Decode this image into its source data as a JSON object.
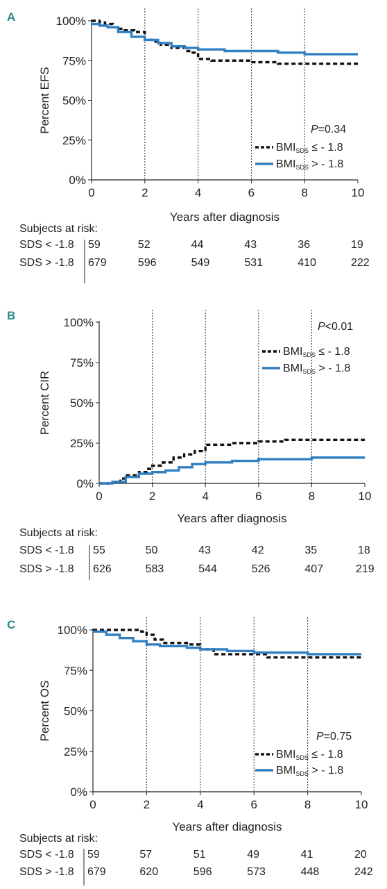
{
  "chart_data": [
    {
      "panel": "A",
      "type": "line",
      "ylabel": "Percent EFS",
      "xlabel": "Years after diagnosis",
      "xlim": [
        0,
        10
      ],
      "ylim": [
        0,
        100
      ],
      "xticks": [
        "0",
        "2",
        "4",
        "6",
        "8",
        "10"
      ],
      "yticks": [
        "0%",
        "25%",
        "50%",
        "75%",
        "100%"
      ],
      "vlines": [
        2,
        4,
        6,
        8
      ],
      "pvalue_prefix": "P",
      "pvalue": "=0.34",
      "legend": [
        {
          "pre": "BMI",
          "sub": "SDS",
          "post": " ≤ - 1.8",
          "style": "dashed",
          "color": "#111111"
        },
        {
          "pre": "BMI",
          "sub": "SDS",
          "post": " > - 1.8",
          "style": "solid",
          "color": "#2f7fc1"
        }
      ],
      "series": [
        {
          "style": "dashed",
          "color": "#111111",
          "x": [
            0,
            0.3,
            0.5,
            0.8,
            1.0,
            1.2,
            1.6,
            2.0,
            2.4,
            2.6,
            3.0,
            3.6,
            3.8,
            4.0,
            4.5,
            5.0,
            6.0,
            6.5,
            7.0,
            8.0,
            9.0,
            10.0
          ],
          "y": [
            100,
            99,
            98,
            96,
            95,
            94,
            93,
            88,
            87,
            85,
            83,
            81,
            80,
            76,
            75,
            75,
            74,
            74,
            73,
            73,
            73,
            73
          ]
        },
        {
          "style": "solid",
          "color": "#2f7fc1",
          "x": [
            0,
            0.3,
            0.6,
            1.0,
            1.5,
            2.0,
            2.5,
            3.0,
            3.5,
            4.0,
            4.5,
            5.0,
            6.0,
            7.0,
            7.5,
            8.0,
            9.0,
            10.0
          ],
          "y": [
            98,
            97,
            96,
            93,
            90,
            88,
            86,
            84,
            83,
            82,
            82,
            81,
            81,
            80,
            80,
            79,
            79,
            79
          ]
        }
      ],
      "risk_title": "Subjects at risk:",
      "risk_rows": [
        {
          "label": "SDS < -1.8",
          "values": [
            "59",
            "52",
            "44",
            "43",
            "36",
            "19"
          ]
        },
        {
          "label": "SDS > -1.8",
          "values": [
            "679",
            "596",
            "549",
            "531",
            "410",
            "222"
          ]
        }
      ]
    },
    {
      "panel": "B",
      "type": "line",
      "ylabel": "Percent CIR",
      "xlabel": "Years after diagnosis",
      "xlim": [
        0,
        10
      ],
      "ylim": [
        0,
        100
      ],
      "xticks": [
        "0",
        "2",
        "4",
        "6",
        "8",
        "10"
      ],
      "yticks": [
        "0%",
        "25%",
        "50%",
        "75%",
        "100%"
      ],
      "vlines": [
        2,
        4,
        6,
        8
      ],
      "pvalue_prefix": "P",
      "pvalue": "<0.01",
      "legend": [
        {
          "pre": "BMI",
          "sub": "SDS",
          "post": " ≤ - 1.8",
          "style": "dashed",
          "color": "#111111"
        },
        {
          "pre": "BMI",
          "sub": "SDS",
          "post": " > - 1.8",
          "style": "solid",
          "color": "#2f7fc1"
        }
      ],
      "series": [
        {
          "style": "dashed",
          "color": "#111111",
          "x": [
            0,
            0.5,
            0.8,
            1.0,
            1.5,
            1.8,
            2.0,
            2.4,
            2.8,
            3.2,
            3.6,
            4.0,
            4.5,
            5.0,
            5.5,
            6.0,
            7.0,
            8.0,
            9.0,
            10.0
          ],
          "y": [
            0,
            1,
            3,
            5,
            7,
            9,
            11,
            13,
            16,
            18,
            20,
            24,
            24,
            25,
            25,
            26,
            27,
            27,
            27,
            27
          ]
        },
        {
          "style": "solid",
          "color": "#2f7fc1",
          "x": [
            0,
            0.5,
            1.0,
            1.5,
            2.0,
            2.5,
            3.0,
            3.5,
            4.0,
            5.0,
            6.0,
            7.0,
            8.0,
            9.0,
            10.0
          ],
          "y": [
            0,
            1,
            4,
            6,
            7,
            8,
            10,
            12,
            13,
            14,
            15,
            15,
            16,
            16,
            16
          ]
        }
      ],
      "risk_title": "Subjects at risk:",
      "risk_rows": [
        {
          "label": "SDS < -1.8",
          "values": [
            "55",
            "50",
            "43",
            "42",
            "35",
            "18"
          ]
        },
        {
          "label": "SDS > -1.8",
          "values": [
            "626",
            "583",
            "544",
            "526",
            "407",
            "219"
          ]
        }
      ]
    },
    {
      "panel": "C",
      "type": "line",
      "ylabel": "Percent OS",
      "xlabel": "Years after diagnosis",
      "xlim": [
        0,
        10
      ],
      "ylim": [
        0,
        100
      ],
      "xticks": [
        "0",
        "2",
        "4",
        "6",
        "8",
        "10"
      ],
      "yticks": [
        "0%",
        "25%",
        "50%",
        "75%",
        "100%"
      ],
      "vlines": [
        2,
        4,
        6,
        8
      ],
      "pvalue_prefix": "P",
      "pvalue": "=0.75",
      "legend": [
        {
          "pre": "BMI",
          "sub": "SDS",
          "post": " ≤ - 1.8",
          "style": "dashed",
          "color": "#111111"
        },
        {
          "pre": "BMI",
          "sub": "SDS",
          "post": " > - 1.8",
          "style": "solid",
          "color": "#2f7fc1"
        }
      ],
      "series": [
        {
          "style": "dashed",
          "color": "#111111",
          "x": [
            0,
            0.5,
            1.0,
            1.5,
            1.8,
            2.0,
            2.3,
            2.6,
            3.0,
            3.5,
            4.0,
            4.5,
            5.0,
            5.5,
            6.0,
            6.5,
            7.0,
            8.0,
            9.0,
            10.0
          ],
          "y": [
            100,
            100,
            100,
            100,
            99,
            97,
            94,
            92,
            92,
            91,
            88,
            85,
            85,
            85,
            85,
            83,
            83,
            83,
            83,
            83
          ]
        },
        {
          "style": "solid",
          "color": "#2f7fc1",
          "x": [
            0,
            0.5,
            1.0,
            1.5,
            2.0,
            2.5,
            3.0,
            3.5,
            4.0,
            5.0,
            6.0,
            7.0,
            8.0,
            9.0,
            10.0
          ],
          "y": [
            99,
            97,
            95,
            93,
            91,
            90,
            90,
            89,
            88,
            87,
            86,
            86,
            85,
            85,
            85
          ]
        }
      ],
      "risk_title": "Subjects at risk:",
      "risk_rows": [
        {
          "label": "SDS < -1.8",
          "values": [
            "59",
            "57",
            "51",
            "49",
            "41",
            "20"
          ]
        },
        {
          "label": "SDS > -1.8",
          "values": [
            "679",
            "620",
            "596",
            "573",
            "448",
            "242"
          ]
        }
      ]
    }
  ]
}
